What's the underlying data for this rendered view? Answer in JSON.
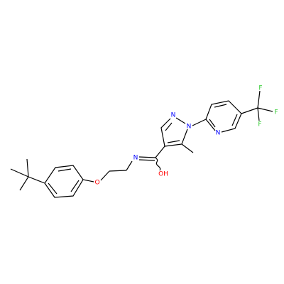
{
  "atom_labels": [
    "N",
    "N",
    "N",
    "N",
    "O",
    "OH",
    "F",
    "F",
    "F"
  ]
}
